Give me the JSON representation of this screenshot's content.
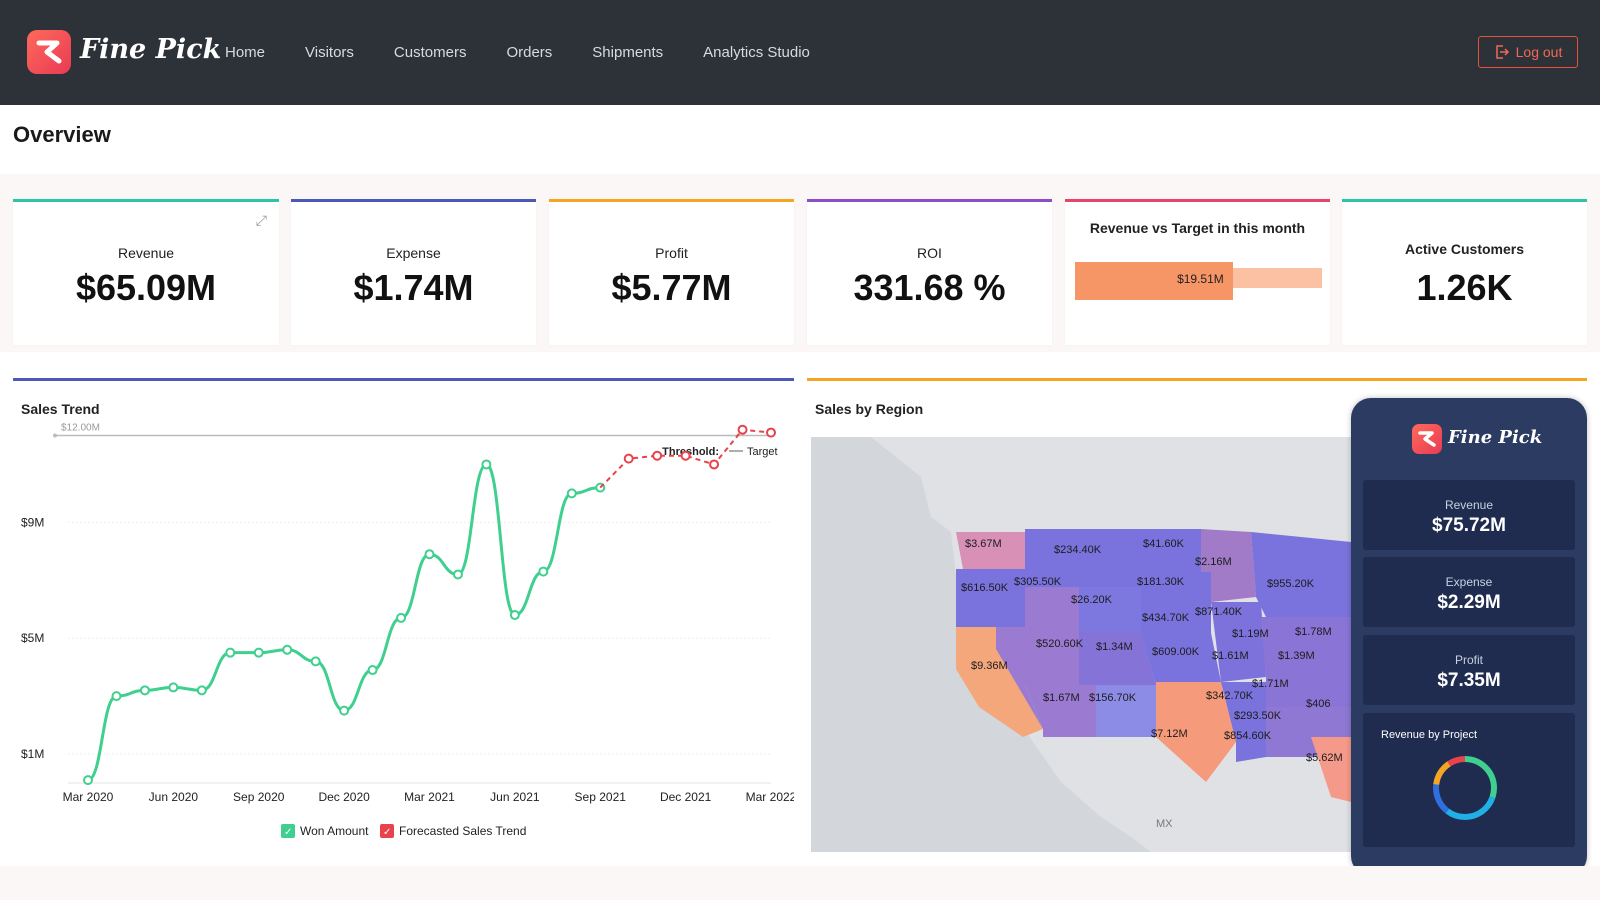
{
  "app": {
    "name": "Fine Pick",
    "nav": [
      "Home",
      "Visitors",
      "Customers",
      "Orders",
      "Shipments",
      "Analytics Studio"
    ],
    "logout_label": "Log out"
  },
  "page_title": "Overview",
  "kpis": {
    "revenue": {
      "label": "Revenue",
      "value": "$65.09M"
    },
    "expense": {
      "label": "Expense",
      "value": "$1.74M"
    },
    "profit": {
      "label": "Profit",
      "value": "$5.77M"
    },
    "roi": {
      "label": "ROI",
      "value": "331.68 %"
    },
    "rvt": {
      "label": "Revenue vs Target in this month",
      "value": "$19.51M",
      "fill_fraction": 0.64
    },
    "active_customers": {
      "label": "Active Customers",
      "value": "1.26K"
    }
  },
  "colors": {
    "revenue": "#2ec4a6",
    "expense": "#4d59b7",
    "profit": "#f5a524",
    "roi": "#8c4ec4",
    "rvt": "#e8436a",
    "active_customers": "#2ec4a6",
    "sales_trend": "#4d59b7",
    "sales_region": "#f5a524",
    "won": "#3fcf8e",
    "forecast": "#e8434c"
  },
  "sales_trend": {
    "title": "Sales Trend",
    "threshold_label": "Threshold:",
    "target_label": "Target",
    "chart_data": {
      "type": "line",
      "x_tick_labels": [
        "Mar 2020",
        "Jun 2020",
        "Sep 2020",
        "Dec 2020",
        "Mar 2021",
        "Jun 2021",
        "Sep 2021",
        "Dec 2021",
        "Mar 2022"
      ],
      "y_tick_labels": [
        "$1M",
        "$5M",
        "$9M"
      ],
      "y_ticks": [
        1,
        5,
        9
      ],
      "ylim": [
        0,
        12.5
      ],
      "target_line": {
        "value": 12,
        "label": "$12.00M"
      },
      "series": [
        {
          "name": "Won Amount",
          "type": "line",
          "x": [
            "Mar 2020",
            "Apr 2020",
            "May 2020",
            "Jun 2020",
            "Jul 2020",
            "Aug 2020",
            "Sep 2020",
            "Oct 2020",
            "Nov 2020",
            "Dec 2020",
            "Jan 2021",
            "Feb 2021",
            "Mar 2021",
            "Apr 2021",
            "May 2021",
            "Jun 2021",
            "Jul 2021",
            "Aug 2021",
            "Sep 2021"
          ],
          "values": [
            0.1,
            3.0,
            3.2,
            3.3,
            3.2,
            4.5,
            4.5,
            4.6,
            4.2,
            2.5,
            3.9,
            5.7,
            7.9,
            7.2,
            11.0,
            5.8,
            7.3,
            10.0,
            10.2
          ]
        },
        {
          "name": "Forecasted Sales Trend",
          "type": "dashed",
          "x": [
            "Sep 2021",
            "Oct 2021",
            "Nov 2021",
            "Dec 2021",
            "Jan 2022",
            "Feb 2022",
            "Mar 2022"
          ],
          "values": [
            10.2,
            11.2,
            11.3,
            11.3,
            11.0,
            12.2,
            12.1
          ]
        }
      ]
    }
  },
  "sales_region": {
    "title": "Sales by Region",
    "country_label": "MX",
    "labels": [
      "$3.67M",
      "$234.40K",
      "$41.60K",
      "$2.16M",
      "$616.50K",
      "$305.50K",
      "$181.30K",
      "$955.20K",
      "$26.20K",
      "$434.70K",
      "$871.40K",
      "$1.19M",
      "$1.78M",
      "$520.60K",
      "$1.34M",
      "$609.00K",
      "$1.61M",
      "$1.39M",
      "$9.36M",
      "$1.71M",
      "$1.67M",
      "$156.70K",
      "$342.70K",
      "$406",
      "$293.50K",
      "$7.12M",
      "$854.60K",
      "$5.62M"
    ]
  },
  "phone": {
    "brand": "Fine Pick",
    "revenue": {
      "label": "Revenue",
      "value": "$75.72M"
    },
    "expense": {
      "label": "Expense",
      "value": "$2.29M"
    },
    "profit": {
      "label": "Profit",
      "value": "$7.35M"
    },
    "project_title": "Revenue by Project"
  }
}
